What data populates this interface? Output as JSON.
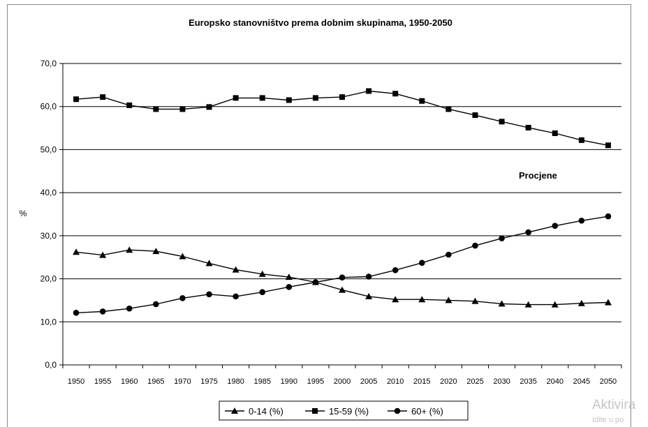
{
  "chart_data": {
    "type": "line",
    "title": "Europsko stanovništvo prema dobnim skupinama, 1950-2050",
    "ylabel": "%",
    "xlabel": "",
    "annotation": "Procjene",
    "ylim": [
      0,
      70
    ],
    "yticks": [
      "0,0",
      "10,0",
      "20,0",
      "30,0",
      "40,0",
      "50,0",
      "60,0",
      "70,0"
    ],
    "ytick_values": [
      0,
      10,
      20,
      30,
      40,
      50,
      60,
      70
    ],
    "categories": [
      "1950",
      "1955",
      "1960",
      "1965",
      "1970",
      "1975",
      "1980",
      "1985",
      "1990",
      "1995",
      "2000",
      "2005",
      "2010",
      "2015",
      "2020",
      "2025",
      "2030",
      "2035",
      "2040",
      "2045",
      "2050"
    ],
    "grid": true,
    "legend_position": "bottom",
    "series": [
      {
        "name": "0-14 (%)",
        "marker": "triangle",
        "values": [
          26.2,
          25.5,
          26.7,
          26.4,
          25.2,
          23.6,
          22.1,
          21.1,
          20.4,
          19.2,
          17.4,
          15.9,
          15.2,
          15.2,
          15.0,
          14.8,
          14.2,
          14.0,
          14.0,
          14.3,
          14.5
        ]
      },
      {
        "name": "15-59 (%)",
        "marker": "square",
        "values": [
          61.7,
          62.2,
          60.3,
          59.4,
          59.4,
          59.9,
          62.0,
          62.0,
          61.5,
          62.0,
          62.2,
          63.6,
          63.0,
          61.3,
          59.4,
          58.0,
          56.5,
          55.1,
          53.8,
          52.2,
          51.0
        ]
      },
      {
        "name": "60+ (%)",
        "marker": "circle",
        "values": [
          12.1,
          12.4,
          13.1,
          14.1,
          15.5,
          16.4,
          15.9,
          16.9,
          18.1,
          19.2,
          20.3,
          20.5,
          22.0,
          23.7,
          25.6,
          27.7,
          29.4,
          30.8,
          32.3,
          33.5,
          34.5
        ]
      }
    ]
  },
  "watermark": {
    "line1": "Aktivira",
    "line2": "Idite u po"
  },
  "colors": {
    "series": "#000000",
    "grid": "#000000",
    "frame": "#8a8a8a"
  }
}
